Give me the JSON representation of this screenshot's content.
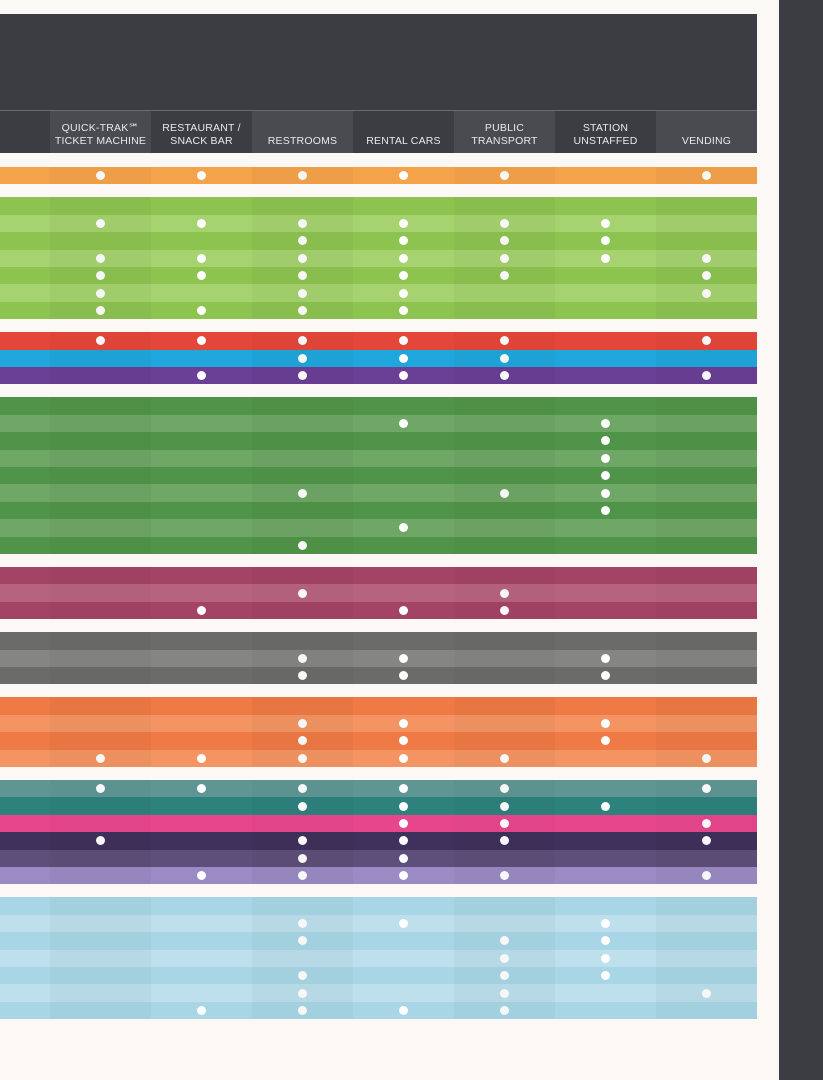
{
  "columns": [
    {
      "label": ""
    },
    {
      "label": "QUICK-TRAK℠\nTICKET MACHINE"
    },
    {
      "label": "RESTAURANT /\nSNACK BAR"
    },
    {
      "label": "RESTROOMS"
    },
    {
      "label": "RENTAL CARS"
    },
    {
      "label": "PUBLIC TRANSPORT"
    },
    {
      "label": "STATION\nUNSTAFFED"
    },
    {
      "label": "VENDING"
    }
  ],
  "groups": [
    {
      "color": "#f5a34a",
      "alt": "#f8b464",
      "rows": [
        [
          0,
          1,
          1,
          1,
          1,
          1,
          0,
          1
        ]
      ]
    },
    {
      "color": "#8dc450",
      "alt": "#a6d26f",
      "rows": [
        [
          0,
          0,
          0,
          0,
          0,
          0,
          0,
          0
        ],
        [
          0,
          1,
          1,
          1,
          1,
          1,
          1,
          0
        ],
        [
          0,
          0,
          0,
          1,
          1,
          1,
          1,
          0
        ],
        [
          0,
          1,
          1,
          1,
          1,
          1,
          1,
          1
        ],
        [
          0,
          1,
          1,
          1,
          1,
          1,
          0,
          1
        ],
        [
          0,
          1,
          0,
          1,
          1,
          0,
          0,
          1
        ],
        [
          0,
          1,
          1,
          1,
          1,
          0,
          0,
          0
        ]
      ]
    },
    {
      "color": "#e5463a",
      "alt": "#ec5a4b",
      "rows": [
        [
          0,
          1,
          1,
          1,
          1,
          1,
          0,
          1
        ]
      ]
    },
    {
      "color": "#1fa6dc",
      "alt": "#32b3e4",
      "rows": [
        [
          0,
          0,
          0,
          1,
          1,
          1,
          0,
          0
        ]
      ]
    },
    {
      "color": "#6a3f96",
      "alt": "#7a50a4",
      "rows": [
        [
          0,
          0,
          1,
          1,
          1,
          1,
          0,
          1
        ]
      ]
    },
    {
      "color": "#4f9448",
      "alt": "#6ea766",
      "rows": [
        [
          0,
          0,
          0,
          0,
          0,
          0,
          0,
          0
        ],
        [
          0,
          0,
          0,
          0,
          1,
          0,
          1,
          0
        ],
        [
          0,
          0,
          0,
          0,
          0,
          0,
          1,
          0
        ],
        [
          0,
          0,
          0,
          0,
          0,
          0,
          1,
          0
        ],
        [
          0,
          0,
          0,
          0,
          0,
          0,
          1,
          0
        ],
        [
          0,
          0,
          0,
          1,
          0,
          1,
          1,
          0
        ],
        [
          0,
          0,
          0,
          0,
          0,
          0,
          1,
          0
        ],
        [
          0,
          0,
          0,
          0,
          1,
          0,
          0,
          0
        ],
        [
          0,
          0,
          0,
          1,
          0,
          0,
          0,
          0
        ]
      ]
    },
    {
      "color": "#a34366",
      "alt": "#b76380",
      "rows": [
        [
          0,
          0,
          0,
          0,
          0,
          0,
          0,
          0
        ],
        [
          0,
          0,
          0,
          1,
          0,
          1,
          0,
          0
        ],
        [
          0,
          0,
          1,
          0,
          1,
          1,
          0,
          0
        ]
      ]
    },
    {
      "color": "#6b6b6a",
      "alt": "#858584",
      "rows": [
        [
          0,
          0,
          0,
          0,
          0,
          0,
          0,
          0
        ],
        [
          0,
          0,
          0,
          1,
          1,
          0,
          1,
          0
        ],
        [
          0,
          0,
          0,
          1,
          1,
          0,
          1,
          0
        ]
      ]
    },
    {
      "color": "#ef7a45",
      "alt": "#f39462",
      "rows": [
        [
          0,
          0,
          0,
          0,
          0,
          0,
          0,
          0
        ],
        [
          0,
          0,
          0,
          1,
          1,
          0,
          1,
          0
        ],
        [
          0,
          0,
          0,
          1,
          1,
          0,
          1,
          0
        ],
        [
          0,
          1,
          1,
          1,
          1,
          1,
          0,
          1
        ]
      ]
    },
    {
      "color": "#5f9694",
      "alt": "#74a7a5",
      "rows": [
        [
          0,
          1,
          1,
          1,
          1,
          1,
          0,
          1
        ]
      ]
    },
    {
      "color": "#2e827e",
      "alt": "#43918d",
      "rows": [
        [
          0,
          0,
          0,
          1,
          1,
          1,
          1,
          0
        ]
      ]
    },
    {
      "color": "#e8468c",
      "alt": "#ee65a0",
      "rows": [
        [
          0,
          0,
          0,
          0,
          1,
          1,
          0,
          1
        ]
      ]
    },
    {
      "color": "#40305c",
      "alt": "#52426b",
      "rows": [
        [
          0,
          1,
          0,
          1,
          1,
          1,
          0,
          1
        ]
      ]
    },
    {
      "color": "#5e4e7a",
      "alt": "#6e5f88",
      "rows": [
        [
          0,
          0,
          0,
          1,
          1,
          0,
          0,
          0
        ]
      ]
    },
    {
      "color": "#9a8bc4",
      "alt": "#a99bce",
      "rows": [
        [
          0,
          0,
          1,
          1,
          1,
          1,
          0,
          1
        ]
      ]
    },
    {
      "color": "#a8d6e6",
      "alt": "#bde0ec",
      "rows": [
        [
          0,
          0,
          0,
          0,
          0,
          0,
          0,
          0
        ],
        [
          0,
          0,
          0,
          1,
          1,
          0,
          1,
          0
        ],
        [
          0,
          0,
          0,
          1,
          0,
          1,
          1,
          0
        ],
        [
          0,
          0,
          0,
          0,
          0,
          1,
          1,
          0
        ],
        [
          0,
          0,
          0,
          1,
          0,
          1,
          1,
          0
        ],
        [
          0,
          0,
          0,
          1,
          0,
          1,
          0,
          1
        ],
        [
          0,
          0,
          1,
          1,
          1,
          1,
          0,
          0
        ]
      ]
    }
  ]
}
